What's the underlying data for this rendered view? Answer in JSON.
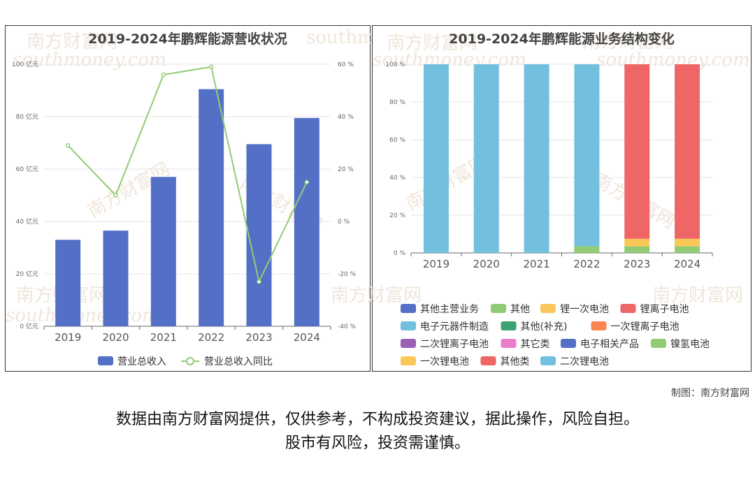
{
  "chart_data": [
    {
      "type": "bar",
      "title": "2019-2024年鹏辉能源营收状况",
      "categories": [
        "2019",
        "2020",
        "2021",
        "2022",
        "2023",
        "2024"
      ],
      "series": [
        {
          "name": "营业总收入",
          "type": "bar",
          "axis": "left",
          "values": [
            33,
            36.5,
            57,
            90.5,
            69.5,
            79.5
          ],
          "color": "#5470c6"
        },
        {
          "name": "营业总收入同比",
          "type": "line",
          "axis": "right",
          "values": [
            29,
            10,
            56,
            59,
            -23,
            15
          ],
          "color": "#91cc75"
        }
      ],
      "y_left": {
        "min": 0,
        "max": 100,
        "step": 20,
        "unit": " 亿元"
      },
      "y_right": {
        "min": -40,
        "max": 60,
        "step": 20,
        "unit": " %"
      },
      "legend_position": "bottom"
    },
    {
      "type": "bar",
      "stacked": true,
      "title": "2019-2024年鹏辉能源业务结构变化",
      "categories": [
        "2019",
        "2020",
        "2021",
        "2022",
        "2023",
        "2024"
      ],
      "y": {
        "min": 0,
        "max": 100,
        "step": 20,
        "unit": " %"
      },
      "series": [
        {
          "name": "其他主营业务",
          "color": "#5470c6",
          "values": [
            0,
            0,
            0,
            0,
            0,
            0
          ]
        },
        {
          "name": "其他",
          "color": "#91cc75",
          "values": [
            0,
            0,
            0,
            3.5,
            3.5,
            3.5
          ]
        },
        {
          "name": "锂一次电池",
          "color": "#fac858",
          "values": [
            0,
            0,
            0,
            0,
            4,
            4
          ]
        },
        {
          "name": "锂离子电池",
          "color": "#ee6666",
          "values": [
            0,
            0,
            0,
            0,
            92.5,
            92.5
          ]
        },
        {
          "name": "电子元器件制造",
          "color": "#73c0de",
          "values": [
            100,
            100,
            100,
            96.5,
            0,
            0
          ]
        },
        {
          "name": "其他(补充)",
          "color": "#3ba272",
          "values": [
            0,
            0,
            0,
            0,
            0,
            0
          ]
        },
        {
          "name": "一次锂离子电池",
          "color": "#fc8452",
          "values": [
            0,
            0,
            0,
            0,
            0,
            0
          ]
        },
        {
          "name": "二次锂离子电池",
          "color": "#9a60b4",
          "values": [
            0,
            0,
            0,
            0,
            0,
            0
          ]
        },
        {
          "name": "其它类",
          "color": "#ea7ccc",
          "values": [
            0,
            0,
            0,
            0,
            0,
            0
          ]
        },
        {
          "name": "电子相关产品",
          "color": "#5470c6",
          "values": [
            0,
            0,
            0,
            0,
            0,
            0
          ]
        },
        {
          "name": "镍氢电池",
          "color": "#91cc75",
          "values": [
            0,
            0,
            0,
            0,
            0,
            0
          ]
        },
        {
          "name": "一次锂电池",
          "color": "#fac858",
          "values": [
            0,
            0,
            0,
            0,
            0,
            0
          ]
        },
        {
          "name": "其他类",
          "color": "#ee6666",
          "values": [
            0,
            0,
            0,
            0,
            0,
            0
          ]
        },
        {
          "name": "二次锂电池",
          "color": "#73c0de",
          "values": [
            0,
            0,
            0,
            0,
            0,
            0
          ]
        }
      ],
      "legend_position": "bottom"
    }
  ],
  "watermark": {
    "cn": "南方财富网",
    "en": "southmoney.com"
  },
  "credit": "制图：南方财富网",
  "disclaimer": {
    "line1": "数据由南方财富网提供，仅供参考，不构成投资建议，据此操作，风险自担。",
    "line2": "股市有风险，投资需谨慎。"
  }
}
